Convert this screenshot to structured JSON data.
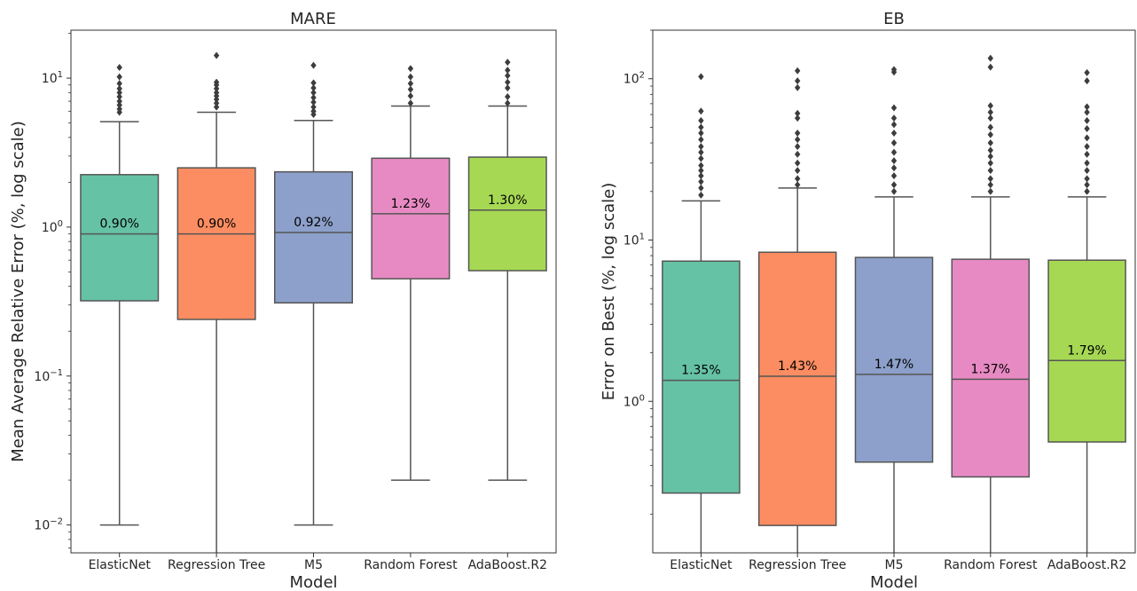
{
  "chart_data": [
    {
      "type": "box",
      "title": "MARE",
      "xlabel": "Model",
      "ylabel": "Mean Average Relative Error (%, log scale)",
      "yscale": "log",
      "ylim": [
        0.0065,
        21
      ],
      "yticks": [
        {
          "value": 0.01,
          "base": "10",
          "exp": "−2"
        },
        {
          "value": 0.1,
          "base": "10",
          "exp": "−1"
        },
        {
          "value": 1,
          "base": "10",
          "exp": "0"
        },
        {
          "value": 10,
          "base": "10",
          "exp": "1"
        }
      ],
      "categories": [
        "ElasticNet",
        "Regression Tree",
        "M5",
        "Random Forest",
        "AdaBoost.R2"
      ],
      "boxes": [
        {
          "q1": 0.32,
          "median": 0.9,
          "q3": 2.25,
          "whisker_low": 0.01,
          "whisker_high": 5.1,
          "median_label": "0.90%",
          "fliers": [
            5.9,
            6.2,
            6.6,
            7.0,
            7.5,
            8.0,
            8.5,
            9.2,
            10.2,
            11.8
          ]
        },
        {
          "q1": 0.24,
          "median": 0.9,
          "q3": 2.5,
          "whisker_low": 0.006,
          "whisker_high": 5.9,
          "median_label": "0.90%",
          "fliers": [
            6.4,
            6.8,
            7.2,
            7.6,
            8.0,
            8.5,
            9.0,
            9.4,
            14.2
          ]
        },
        {
          "q1": 0.31,
          "median": 0.92,
          "q3": 2.35,
          "whisker_low": 0.01,
          "whisker_high": 5.2,
          "median_label": "0.92%",
          "fliers": [
            5.7,
            6.0,
            6.4,
            6.9,
            7.4,
            8.0,
            8.6,
            9.3,
            12.2
          ]
        },
        {
          "q1": 0.45,
          "median": 1.23,
          "q3": 2.9,
          "whisker_low": 0.02,
          "whisker_high": 6.5,
          "median_label": "1.23%",
          "fliers": [
            6.8,
            7.6,
            8.4,
            9.2,
            10.2,
            11.6
          ]
        },
        {
          "q1": 0.51,
          "median": 1.3,
          "q3": 2.95,
          "whisker_low": 0.02,
          "whisker_high": 6.5,
          "median_label": "1.30%",
          "fliers": [
            6.8,
            7.5,
            8.6,
            9.4,
            10.4,
            11.3,
            12.8
          ]
        }
      ],
      "colors": [
        "#66c2a5",
        "#fc8d62",
        "#8da0cb",
        "#e78ac3",
        "#a6d854"
      ]
    },
    {
      "type": "box",
      "title": "EB",
      "xlabel": "Model",
      "ylabel": "Error on Best (%, log scale)",
      "yscale": "log",
      "ylim": [
        0.115,
        200
      ],
      "yticks": [
        {
          "value": 1,
          "base": "10",
          "exp": "0"
        },
        {
          "value": 10,
          "base": "10",
          "exp": "1"
        },
        {
          "value": 100,
          "base": "10",
          "exp": "2"
        }
      ],
      "categories": [
        "ElasticNet",
        "Regression Tree",
        "M5",
        "Random Forest",
        "AdaBoost.R2"
      ],
      "boxes": [
        {
          "q1": 0.27,
          "median": 1.35,
          "q3": 7.4,
          "whisker_low": 0.11,
          "whisker_high": 17.5,
          "median_label": "1.35%",
          "fliers": [
            19,
            21,
            23,
            25,
            27,
            29,
            32,
            35,
            38,
            42,
            46,
            50,
            55,
            63,
            103
          ]
        },
        {
          "q1": 0.17,
          "median": 1.43,
          "q3": 8.4,
          "whisker_low": 0.11,
          "whisker_high": 21,
          "median_label": "1.43%",
          "fliers": [
            22,
            24,
            27,
            30,
            34,
            38,
            42,
            46,
            57,
            61,
            88,
            97,
            112
          ]
        },
        {
          "q1": 0.42,
          "median": 1.47,
          "q3": 7.8,
          "whisker_low": 0.11,
          "whisker_high": 18.5,
          "median_label": "1.47%",
          "fliers": [
            20,
            22,
            25,
            28,
            31,
            35,
            40,
            46,
            52,
            57,
            66,
            110,
            114
          ]
        },
        {
          "q1": 0.34,
          "median": 1.37,
          "q3": 7.6,
          "whisker_low": 0.11,
          "whisker_high": 18.5,
          "median_label": "1.37%",
          "fliers": [
            20,
            22,
            24,
            27,
            30,
            33,
            36,
            40,
            45,
            50,
            57,
            62,
            68,
            118,
            134
          ]
        },
        {
          "q1": 0.56,
          "median": 1.79,
          "q3": 7.5,
          "whisker_low": 0.11,
          "whisker_high": 18.5,
          "median_label": "1.79%",
          "fliers": [
            20,
            22,
            24,
            27,
            30,
            34,
            38,
            43,
            49,
            55,
            62,
            67,
            97,
            109
          ]
        }
      ],
      "colors": [
        "#66c2a5",
        "#fc8d62",
        "#8da0cb",
        "#e78ac3",
        "#a6d854"
      ]
    }
  ]
}
